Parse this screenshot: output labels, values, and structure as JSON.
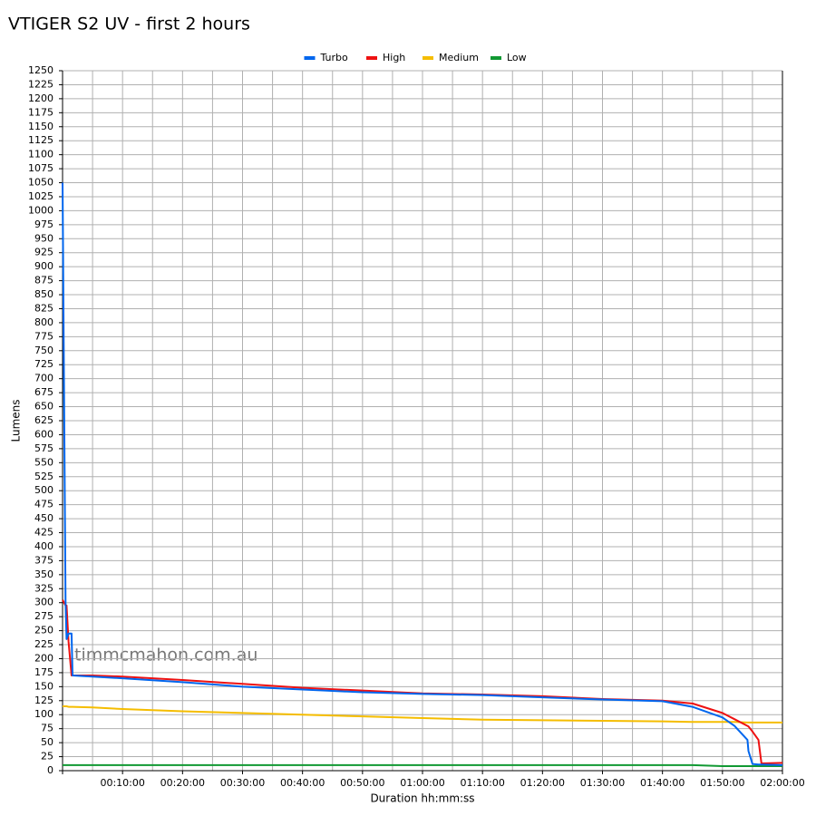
{
  "chart_data": {
    "type": "line",
    "title": "VTIGER S2 UV - first 2 hours",
    "x_label": "Duration hh:mm:ss",
    "y_label": "Lumens",
    "watermark": "timmcmahon.com.au",
    "grid": true,
    "legend": "top",
    "x": [
      0,
      30,
      40,
      60,
      90,
      100,
      300,
      600,
      1200,
      1800,
      2400,
      3000,
      3600,
      4200,
      4800,
      5400,
      6000,
      6300,
      6600,
      6720,
      6850,
      6860,
      6900,
      6960,
      6990,
      7200
    ],
    "series": [
      {
        "name": "Turbo",
        "color": "#0066ee",
        "values": [
          1050,
          300,
          235,
          245,
          245,
          170,
          168,
          165,
          158,
          150,
          145,
          140,
          137,
          135,
          131,
          127,
          124,
          114,
          95,
          80,
          55,
          35,
          12,
          11,
          11,
          10
        ]
      },
      {
        "name": "High",
        "color": "#ee1111",
        "values": [
          305,
          295,
          295,
          230,
          170,
          170,
          170,
          168,
          162,
          155,
          148,
          143,
          138,
          136,
          133,
          128,
          125,
          120,
          103,
          92,
          80,
          79,
          70,
          55,
          13,
          14
        ]
      },
      {
        "name": "Medium",
        "color": "#f5bd00",
        "values": [
          115,
          115,
          115,
          114,
          114,
          114,
          113,
          110,
          106,
          103,
          100,
          97,
          94,
          91,
          90,
          89,
          88,
          87,
          87,
          87,
          86,
          86,
          86,
          86,
          86,
          86
        ]
      },
      {
        "name": "Low",
        "color": "#119933",
        "values": [
          10,
          10,
          10,
          10,
          10,
          10,
          10,
          10,
          10,
          10,
          10,
          10,
          10,
          10,
          10,
          10,
          10,
          10,
          8,
          8,
          8,
          8,
          8,
          8,
          8,
          8
        ]
      }
    ],
    "xlim": [
      0,
      7200
    ],
    "xticks": [
      {
        "value": 600,
        "label": "00:10:00"
      },
      {
        "value": 1200,
        "label": "00:20:00"
      },
      {
        "value": 1800,
        "label": "00:30:00"
      },
      {
        "value": 2400,
        "label": "00:40:00"
      },
      {
        "value": 3000,
        "label": "00:50:00"
      },
      {
        "value": 3600,
        "label": "01:00:00"
      },
      {
        "value": 4200,
        "label": "01:10:00"
      },
      {
        "value": 4800,
        "label": "01:20:00"
      },
      {
        "value": 5400,
        "label": "01:30:00"
      },
      {
        "value": 6000,
        "label": "01:40:00"
      },
      {
        "value": 6600,
        "label": "01:50:00"
      },
      {
        "value": 7200,
        "label": "02:00:00"
      }
    ],
    "xminorticks": [
      300,
      900,
      1500,
      2100,
      2700,
      3300,
      3900,
      4500,
      5100,
      5700,
      6300,
      6900
    ],
    "ylim": [
      0,
      1250
    ],
    "yticks": [
      0,
      25,
      50,
      75,
      100,
      125,
      150,
      175,
      200,
      225,
      250,
      275,
      300,
      325,
      350,
      375,
      400,
      425,
      450,
      475,
      500,
      525,
      550,
      575,
      600,
      625,
      650,
      675,
      700,
      725,
      750,
      775,
      800,
      825,
      850,
      875,
      900,
      925,
      950,
      975,
      1000,
      1025,
      1050,
      1075,
      1100,
      1125,
      1150,
      1175,
      1200,
      1225,
      1250
    ]
  }
}
